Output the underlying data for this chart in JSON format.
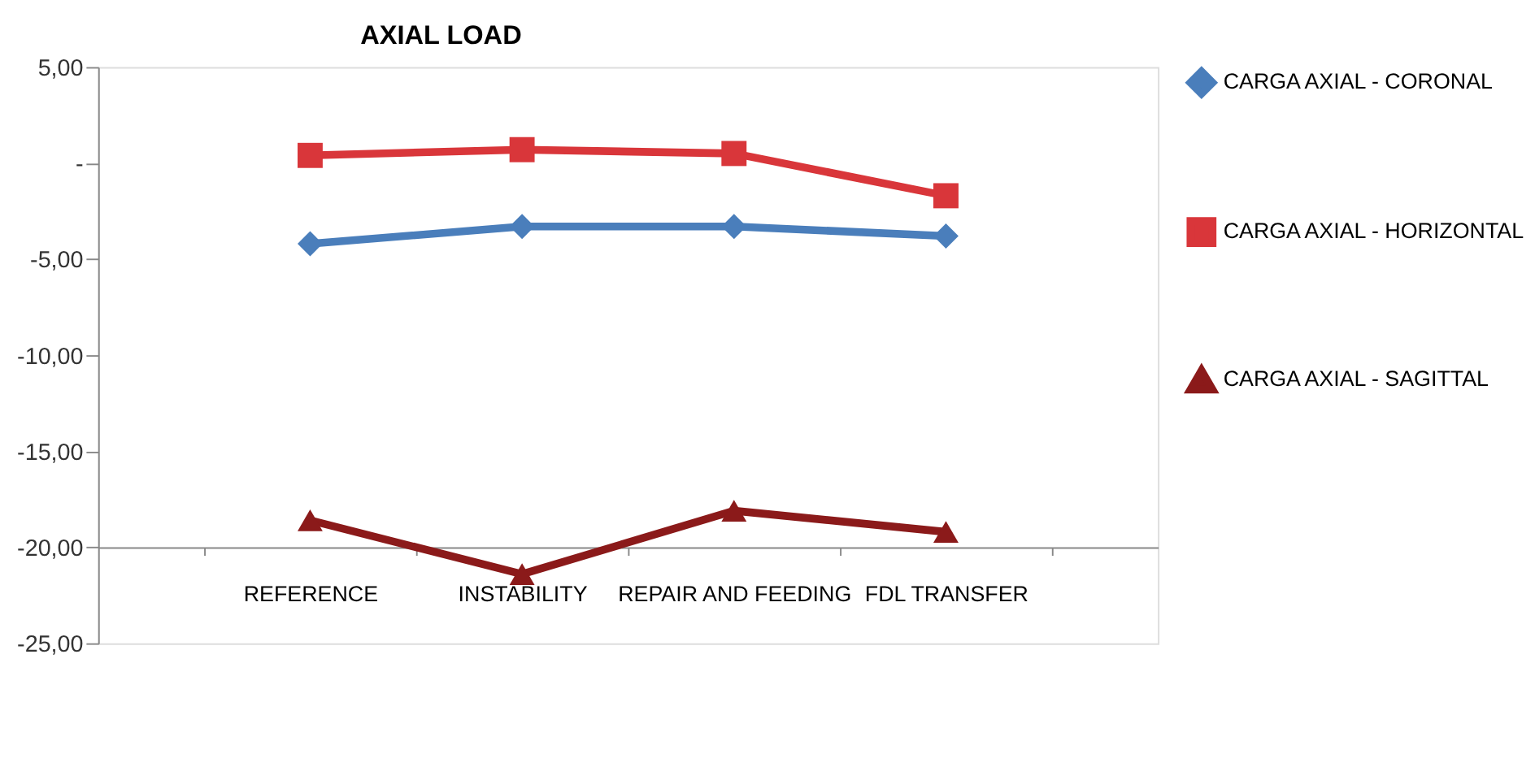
{
  "chart_data": {
    "type": "line",
    "title": "AXIAL LOAD",
    "categories": [
      "REFERENCE",
      "INSTABILITY",
      "REPAIR AND FEEDING",
      "FDL TRANSFER"
    ],
    "series": [
      {
        "name": "CARGA AXIAL - CORONAL",
        "color": "#4a7ebb",
        "marker": "diamond",
        "values": [
          -4.2,
          -3.3,
          -3.3,
          -3.8
        ]
      },
      {
        "name": "CARGA AXIAL - HORIZONTAL",
        "color": "#d9363a",
        "marker": "square",
        "values": [
          0.4,
          0.7,
          0.5,
          -1.7
        ]
      },
      {
        "name": "CARGA AXIAL - SAGITTAL",
        "color": "#8b1a1a",
        "marker": "triangle",
        "values": [
          -18.6,
          -21.4,
          -18.1,
          -19.2
        ]
      }
    ],
    "ylim": [
      -25,
      5
    ],
    "yticks": [
      {
        "value": -25,
        "label": "-25,00"
      },
      {
        "value": -20,
        "label": "-20,00"
      },
      {
        "value": -15,
        "label": "-15,00"
      },
      {
        "value": -10,
        "label": "-10,00"
      },
      {
        "value": -5,
        "label": "-5,00"
      },
      {
        "value": 0,
        "label": "-"
      },
      {
        "value": 5,
        "label": "5,00"
      }
    ],
    "grid": false,
    "legend": "right",
    "line_style": "solid"
  }
}
